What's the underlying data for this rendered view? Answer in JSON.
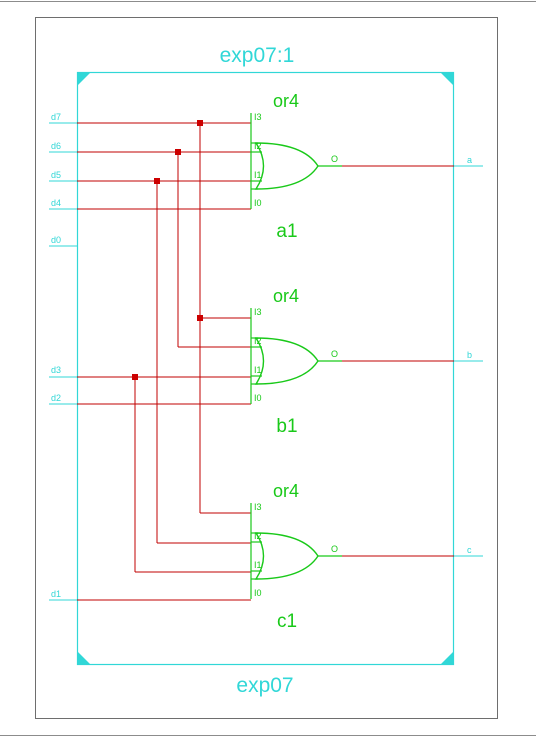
{
  "block": {
    "instance_label": "exp07:1",
    "module_label": "exp07",
    "border_color": "#31d7d7",
    "wire_color": "#c00000",
    "gate_color": "#19c919"
  },
  "inputs": [
    "d7",
    "d6",
    "d5",
    "d4",
    "d0",
    "d3",
    "d2",
    "d1"
  ],
  "outputs": [
    "a",
    "b",
    "c"
  ],
  "gates": [
    {
      "type": "or4",
      "name": "a1",
      "pins": [
        "I3",
        "I2",
        "I1",
        "I0"
      ],
      "out_pin": "O",
      "inputs": [
        "d7",
        "d6",
        "d5",
        "d4"
      ],
      "output": "a"
    },
    {
      "type": "or4",
      "name": "b1",
      "pins": [
        "I3",
        "I2",
        "I1",
        "I0"
      ],
      "out_pin": "O",
      "inputs": [
        "d7",
        "d6",
        "d3",
        "d2"
      ],
      "output": "b"
    },
    {
      "type": "or4",
      "name": "c1",
      "pins": [
        "I3",
        "I2",
        "I1",
        "I0"
      ],
      "out_pin": "O",
      "inputs": [
        "d7",
        "d5",
        "d3",
        "d1"
      ],
      "output": "c"
    }
  ]
}
